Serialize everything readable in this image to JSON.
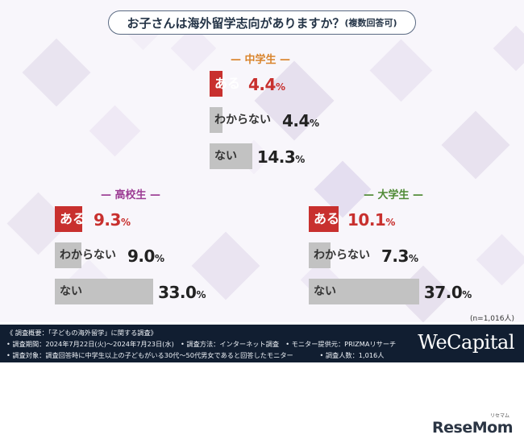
{
  "title": "お子さんは海外留学志向がありますか？",
  "title_suffix": "(複数回答可)",
  "sample_size": "(n=1,016人)",
  "brand": "WeCapital",
  "watermark": "ReseMom",
  "watermark_ruby": "リセマム",
  "colors": {
    "highlight": "#c8302e",
    "bar": "#c2c2c2",
    "ms": "#d9842c",
    "hs": "#9c3c94",
    "univ": "#4f8a35"
  },
  "chart_data": {
    "type": "bar",
    "categories": [
      "ある",
      "わからない",
      "ない"
    ],
    "unit": "%",
    "xlim": [
      0,
      100
    ],
    "panels": [
      {
        "name": "中学生",
        "values": [
          4.4,
          4.4,
          14.3
        ]
      },
      {
        "name": "高校生",
        "values": [
          9.3,
          9.0,
          33.0
        ]
      },
      {
        "name": "大学生",
        "values": [
          10.1,
          7.3,
          37.0
        ]
      }
    ]
  },
  "footer": {
    "lines": [
      "《 調査概要：「子どもの海外留学」に関する調査》",
      "• 調査期間：2024年7月22日(火)～2024年7月23日(水)　• 調査方法：インターネット調査　• モニター提供元：PRIZMAリサーチ",
      "• 調査対象：調査回答時に中学生以上の子どもがいる30代～50代男女であると回答したモニター　　　　• 調査人数：1,016人"
    ]
  }
}
